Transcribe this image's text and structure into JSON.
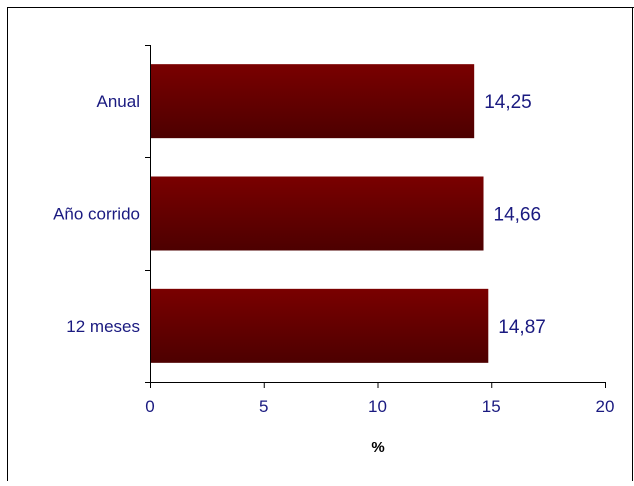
{
  "chart_data": {
    "type": "bar",
    "orientation": "horizontal",
    "categories": [
      "Anual",
      "Año corrido",
      "12 meses"
    ],
    "values": [
      14.25,
      14.66,
      14.87
    ],
    "value_labels": [
      "14,25",
      "14,66",
      "14,87"
    ],
    "xlabel": "%",
    "ylabel": "",
    "xlim": [
      0,
      20
    ],
    "x_ticks": [
      0,
      5,
      10,
      15,
      20
    ],
    "grid": false,
    "legend": "none",
    "colors": {
      "bar": "#7a0000",
      "bar_dark": "#4d0000",
      "label_text": "#1a1a80",
      "axis": "#000000"
    }
  }
}
